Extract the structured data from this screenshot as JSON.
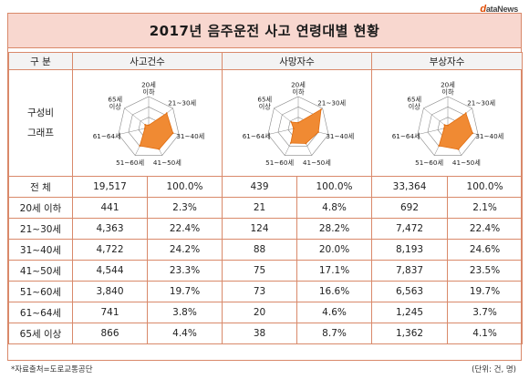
{
  "logo": {
    "d": "d",
    "rest": "ataNews"
  },
  "title": "2017년 음주운전 사고 연령대별 현황",
  "header": {
    "col0": "구 분",
    "col1": "사고건수",
    "col2": "사망자수",
    "col3": "부상자수"
  },
  "graph_label": {
    "line1": "구성비",
    "line2": "그래프"
  },
  "radar_axis_labels": [
    "20세\n이하",
    "21~30세",
    "31~40세",
    "41~50세",
    "51~60세",
    "61~64세",
    "65세\n이상"
  ],
  "colors": {
    "fill": "#f08a33",
    "stroke": "#e06d10",
    "grid": "#888888",
    "border": "#d9896a",
    "title_bg": "#f8d7cf"
  },
  "total": {
    "label": "전 체",
    "accidents": "19,517",
    "accidents_pct": "100.0%",
    "deaths": "439",
    "deaths_pct": "100.0%",
    "injuries": "33,364",
    "injuries_pct": "100.0%"
  },
  "rows": [
    {
      "label": "20세 이하",
      "accidents": "441",
      "accidents_pct": "2.3%",
      "deaths": "21",
      "deaths_pct": "4.8%",
      "injuries": "692",
      "injuries_pct": "2.1%"
    },
    {
      "label": "21~30세",
      "accidents": "4,363",
      "accidents_pct": "22.4%",
      "deaths": "124",
      "deaths_pct": "28.2%",
      "injuries": "7,472",
      "injuries_pct": "22.4%"
    },
    {
      "label": "31~40세",
      "accidents": "4,722",
      "accidents_pct": "24.2%",
      "deaths": "88",
      "deaths_pct": "20.0%",
      "injuries": "8,193",
      "injuries_pct": "24.6%"
    },
    {
      "label": "41~50세",
      "accidents": "4,544",
      "accidents_pct": "23.3%",
      "deaths": "75",
      "deaths_pct": "17.1%",
      "injuries": "7,837",
      "injuries_pct": "23.5%"
    },
    {
      "label": "51~60세",
      "accidents": "3,840",
      "accidents_pct": "19.7%",
      "deaths": "73",
      "deaths_pct": "16.6%",
      "injuries": "6,563",
      "injuries_pct": "19.7%"
    },
    {
      "label": "61~64세",
      "accidents": "741",
      "accidents_pct": "3.8%",
      "deaths": "20",
      "deaths_pct": "4.6%",
      "injuries": "1,245",
      "injuries_pct": "3.7%"
    },
    {
      "label": "65세 이상",
      "accidents": "866",
      "accidents_pct": "4.4%",
      "deaths": "38",
      "deaths_pct": "8.7%",
      "injuries": "1,362",
      "injuries_pct": "4.1%"
    }
  ],
  "footer": {
    "source": "*자료출처=도로교통공단",
    "unit": "(단위: 건, 명)"
  },
  "chart_data": {
    "type": "radar",
    "categories": [
      "20세 이하",
      "21~30세",
      "31~40세",
      "41~50세",
      "51~60세",
      "61~64세",
      "65세 이상"
    ],
    "rmax": 30,
    "series": [
      {
        "name": "사고건수",
        "values": [
          2.3,
          22.4,
          24.2,
          23.3,
          19.7,
          3.8,
          4.4
        ]
      },
      {
        "name": "사망자수",
        "values": [
          4.8,
          28.2,
          20.0,
          17.1,
          16.6,
          4.6,
          8.7
        ]
      },
      {
        "name": "부상자수",
        "values": [
          2.1,
          22.4,
          24.6,
          23.5,
          19.7,
          3.7,
          4.1
        ]
      }
    ]
  }
}
